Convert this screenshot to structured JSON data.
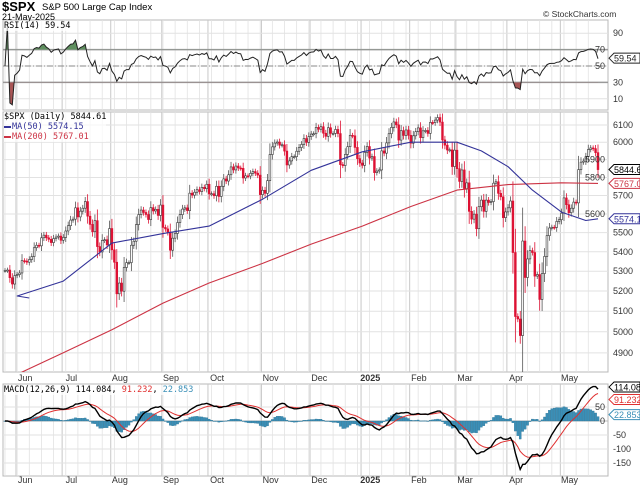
{
  "header": {
    "symbol": "$SPX",
    "name": "S&P 500 Large Cap Index",
    "date": "21-May-2025",
    "copyright": "© StockCharts.com"
  },
  "colors": {
    "up_candle": "#222222",
    "down_candle": "#dd1133",
    "ma50": "#333399",
    "ma200": "#cc3344",
    "rsi_line": "#222222",
    "rsi_overbought_fill": "#5f8f5f",
    "rsi_oversold_fill": "#a85555",
    "macd_line": "#000000",
    "macd_signal": "#e03030",
    "macd_hist": "#3a8fb7",
    "grid": "#e2e2e2"
  },
  "chart_data": {
    "type": "candlestick",
    "scale": "log",
    "grid": true,
    "x_labels": [
      {
        "month": "2024-06",
        "label": "Jun"
      },
      {
        "month": "2024-07",
        "label": "Jul"
      },
      {
        "month": "2024-08",
        "label": "Aug"
      },
      {
        "month": "2024-09",
        "label": "Sep"
      },
      {
        "month": "2024-10",
        "label": "Oct"
      },
      {
        "month": "2024-11",
        "label": "Nov"
      },
      {
        "month": "2024-12",
        "label": "Dec"
      },
      {
        "month": "2025-01",
        "label": "2025",
        "bold": true
      },
      {
        "month": "2025-02",
        "label": "Feb"
      },
      {
        "month": "2025-03",
        "label": "Mar"
      },
      {
        "month": "2025-04",
        "label": "Apr"
      },
      {
        "month": "2025-05",
        "label": "May"
      }
    ],
    "last_date": "2025-05-21",
    "price": {
      "label": "$SPX (Daily)",
      "last": "5844.61",
      "ylim": [
        4800,
        6180
      ],
      "ticks": [
        6100,
        6000,
        5900,
        5800,
        5700,
        5600,
        5500,
        5400,
        5300,
        5200,
        5100,
        5000,
        4900
      ],
      "daily_closes_by_month": [
        {
          "month": "2024-05",
          "closes": [
            5304,
            5306,
            5267,
            5235,
            5278
          ]
        },
        {
          "month": "2024-06",
          "closes": [
            5283,
            5291,
            5354,
            5352,
            5346,
            5360,
            5375,
            5421,
            5434,
            5431,
            5473,
            5487,
            5473,
            5465,
            5448,
            5469,
            5477,
            5482,
            5460
          ]
        },
        {
          "month": "2024-07",
          "closes": [
            5475,
            5509,
            5537,
            5567,
            5572,
            5633,
            5584,
            5615,
            5631,
            5667,
            5588,
            5544,
            5505,
            5564,
            5427,
            5399,
            5459,
            5463,
            5436,
            5522
          ]
        },
        {
          "month": "2024-08",
          "closes": [
            5410,
            5346,
            5186,
            5240,
            5199,
            5319,
            5344,
            5344,
            5434,
            5455,
            5543,
            5597,
            5621,
            5608,
            5597,
            5570,
            5634,
            5616,
            5625,
            5592,
            5648
          ]
        },
        {
          "month": "2024-09",
          "closes": [
            5528,
            5520,
            5503,
            5408,
            5471,
            5496,
            5554,
            5596,
            5626,
            5633,
            5618,
            5713,
            5702,
            5718,
            5732,
            5722,
            5745,
            5738,
            5762
          ]
        },
        {
          "month": "2024-10",
          "closes": [
            5709,
            5710,
            5699,
            5751,
            5695,
            5751,
            5792,
            5780,
            5815,
            5859,
            5842,
            5864,
            5853,
            5851,
            5797,
            5809,
            5808,
            5823,
            5833,
            5824,
            5813,
            5705
          ]
        },
        {
          "month": "2024-11",
          "closes": [
            5729,
            5712,
            5782,
            5929,
            5973,
            5995,
            6001,
            5983,
            5985,
            5949,
            5870,
            5893,
            5917,
            5917,
            5948,
            5969,
            5987,
            6021,
            5999,
            6032
          ]
        },
        {
          "month": "2024-12",
          "closes": [
            6047,
            6049,
            6086,
            6075,
            6090,
            6052,
            6034,
            6084,
            6051,
            6051,
            6074,
            6050,
            5872,
            5867,
            5930,
            5974,
            6040,
            6037,
            5970,
            5906,
            5881
          ]
        },
        {
          "month": "2025-01",
          "closes": [
            5868,
            5942,
            5975,
            5909,
            5918,
            5827,
            5836,
            5842,
            5950,
            5937,
            5996,
            6049,
            6086,
            6118,
            6101,
            6012,
            6067,
            6039,
            6071,
            6040
          ]
        },
        {
          "month": "2025-02",
          "closes": [
            5994,
            6037,
            6061,
            6083,
            6026,
            6066,
            6068,
            6051,
            6115,
            6114,
            6129,
            6144,
            6117,
            6013,
            5983,
            5955,
            5956,
            5861,
            5954
          ]
        },
        {
          "month": "2025-03",
          "closes": [
            5849,
            5778,
            5842,
            5738,
            5770,
            5614,
            5572,
            5599,
            5521,
            5639,
            5675,
            5614,
            5675,
            5662,
            5667,
            5768,
            5776,
            5712,
            5693,
            5580,
            5611
          ]
        },
        {
          "month": "2025-04",
          "closes": [
            5633,
            5670,
            5396,
            5074,
            5062,
            4982,
            5456,
            5268,
            5363,
            5406,
            5396,
            5275,
            5283,
            5158,
            5288,
            5376,
            5484,
            5525,
            5529,
            5528,
            5560,
            5569
          ]
        },
        {
          "month": "2025-05",
          "closes": [
            5604,
            5687,
            5650,
            5607,
            5631,
            5664,
            5660,
            5844,
            5886,
            5892,
            5917,
            5958,
            5967,
            5963,
            5940,
            5844
          ]
        }
      ],
      "ma50": {
        "label": "MA(50)",
        "last": "5574.15",
        "points": [
          {
            "date": "2024-05-24",
            "value": 5165
          },
          {
            "date": "2024-06-03",
            "value": 5175
          },
          {
            "date": "2024-07-01",
            "value": 5250
          },
          {
            "date": "2024-08-01",
            "value": 5445
          },
          {
            "date": "2024-09-03",
            "value": 5495
          },
          {
            "date": "2024-10-01",
            "value": 5535
          },
          {
            "date": "2024-11-01",
            "value": 5680
          },
          {
            "date": "2024-12-02",
            "value": 5840
          },
          {
            "date": "2025-01-02",
            "value": 5945
          },
          {
            "date": "2025-02-03",
            "value": 6000
          },
          {
            "date": "2025-03-03",
            "value": 6000
          },
          {
            "date": "2025-03-17",
            "value": 5950
          },
          {
            "date": "2025-04-01",
            "value": 5860
          },
          {
            "date": "2025-04-15",
            "value": 5730
          },
          {
            "date": "2025-05-01",
            "value": 5610
          },
          {
            "date": "2025-05-15",
            "value": 5565
          },
          {
            "date": "2025-05-21",
            "value": 5574.15
          }
        ]
      },
      "ma200": {
        "label": "MA(200)",
        "last": "5767.01",
        "points": [
          {
            "date": "2024-05-24",
            "value": 4760
          },
          {
            "date": "2024-06-03",
            "value": 4800
          },
          {
            "date": "2024-07-01",
            "value": 4900
          },
          {
            "date": "2024-08-01",
            "value": 5010
          },
          {
            "date": "2024-09-03",
            "value": 5140
          },
          {
            "date": "2024-10-01",
            "value": 5240
          },
          {
            "date": "2024-11-01",
            "value": 5340
          },
          {
            "date": "2024-12-02",
            "value": 5440
          },
          {
            "date": "2025-01-02",
            "value": 5535
          },
          {
            "date": "2025-02-03",
            "value": 5640
          },
          {
            "date": "2025-03-03",
            "value": 5730
          },
          {
            "date": "2025-04-01",
            "value": 5760
          },
          {
            "date": "2025-05-01",
            "value": 5770
          },
          {
            "date": "2025-05-21",
            "value": 5767.01
          }
        ]
      }
    },
    "rsi": {
      "label": "RSI(14)",
      "period": 14,
      "last": "59.54",
      "ylim": [
        0,
        100
      ],
      "ticks": [
        90,
        70,
        50,
        30,
        10
      ],
      "overbought": 70,
      "oversold": 30,
      "midline": 50
    },
    "macd": {
      "label": "MACD(12,26,9)",
      "fast": 12,
      "slow": 26,
      "signal": 9,
      "last_macd": "114.084",
      "last_signal": "91.232",
      "last_hist": "22.853",
      "ylim": [
        -190,
        150
      ],
      "ticks": [
        50,
        0,
        -50,
        -100,
        -150
      ]
    }
  }
}
